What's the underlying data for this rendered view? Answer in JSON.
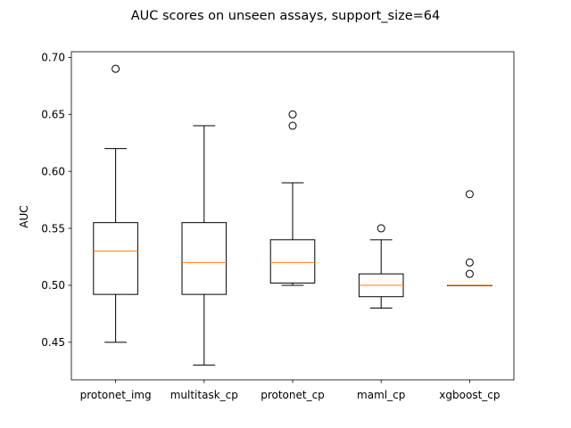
{
  "chart_data": {
    "type": "box",
    "title": "AUC scores on unseen assays, support_size=64",
    "xlabel": "",
    "ylabel": "AUC",
    "ylim": [
      0.417,
      0.705
    ],
    "yticks": [
      0.45,
      0.5,
      0.55,
      0.6,
      0.65,
      0.7
    ],
    "ytick_labels": [
      "0.45",
      "0.50",
      "0.55",
      "0.60",
      "0.65",
      "0.70"
    ],
    "grid": false,
    "colors": {
      "box": "#000000",
      "median": "#ff7f0e",
      "flier": "#000000"
    },
    "categories": [
      "protonet_img",
      "multitask_cp",
      "protonet_cp",
      "maml_cp",
      "xgboost_cp"
    ],
    "boxes": [
      {
        "name": "protonet_img",
        "whisker_low": 0.45,
        "q1": 0.492,
        "median": 0.53,
        "q3": 0.555,
        "whisker_high": 0.62,
        "fliers": [
          0.69
        ]
      },
      {
        "name": "multitask_cp",
        "whisker_low": 0.43,
        "q1": 0.492,
        "median": 0.52,
        "q3": 0.555,
        "whisker_high": 0.64,
        "fliers": []
      },
      {
        "name": "protonet_cp",
        "whisker_low": 0.5,
        "q1": 0.502,
        "median": 0.52,
        "q3": 0.54,
        "whisker_high": 0.59,
        "fliers": [
          0.64,
          0.65
        ]
      },
      {
        "name": "maml_cp",
        "whisker_low": 0.48,
        "q1": 0.49,
        "median": 0.5,
        "q3": 0.51,
        "whisker_high": 0.54,
        "fliers": [
          0.55
        ]
      },
      {
        "name": "xgboost_cp",
        "whisker_low": 0.5,
        "q1": 0.5,
        "median": 0.5,
        "q3": 0.5,
        "whisker_high": 0.5,
        "fliers": [
          0.51,
          0.52,
          0.58
        ]
      }
    ]
  }
}
